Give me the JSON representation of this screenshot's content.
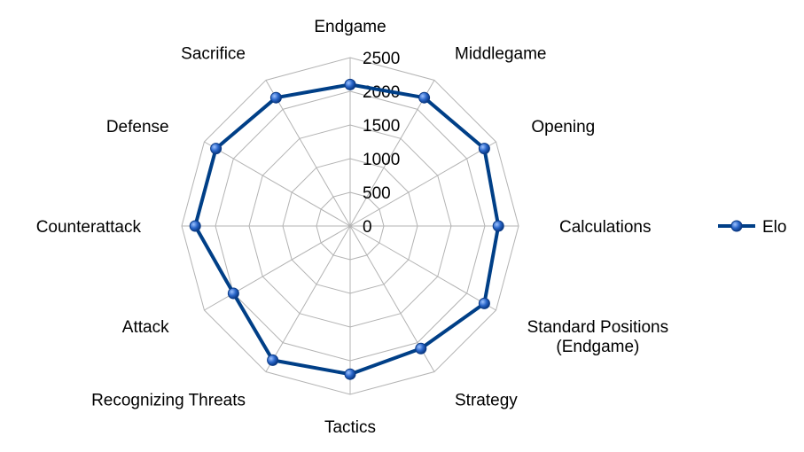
{
  "chart_data": {
    "type": "radar",
    "categories": [
      "Endgame",
      "Middlegame",
      "Opening",
      "Calculations",
      "Standard Positions\n(Endgame)",
      "Strategy",
      "Tactics",
      "Recognizing Threats",
      "Attack",
      "Counterattack",
      "Defense",
      "Sacrifice"
    ],
    "series": [
      {
        "name": "Elo",
        "color": "#003f87",
        "marker_color": "#1f5fbf",
        "values": [
          2100,
          2200,
          2300,
          2200,
          2300,
          2100,
          2200,
          2300,
          2000,
          2300,
          2300,
          2200
        ]
      }
    ],
    "rlim": [
      0,
      2500
    ],
    "ticks": [
      "0",
      "500",
      "1000",
      "1500",
      "2000",
      "2500"
    ],
    "tick_values": [
      0,
      500,
      1000,
      1500,
      2000,
      2500
    ],
    "grid": true,
    "grid_color": "#b3b3b3",
    "legend_position": "right"
  }
}
